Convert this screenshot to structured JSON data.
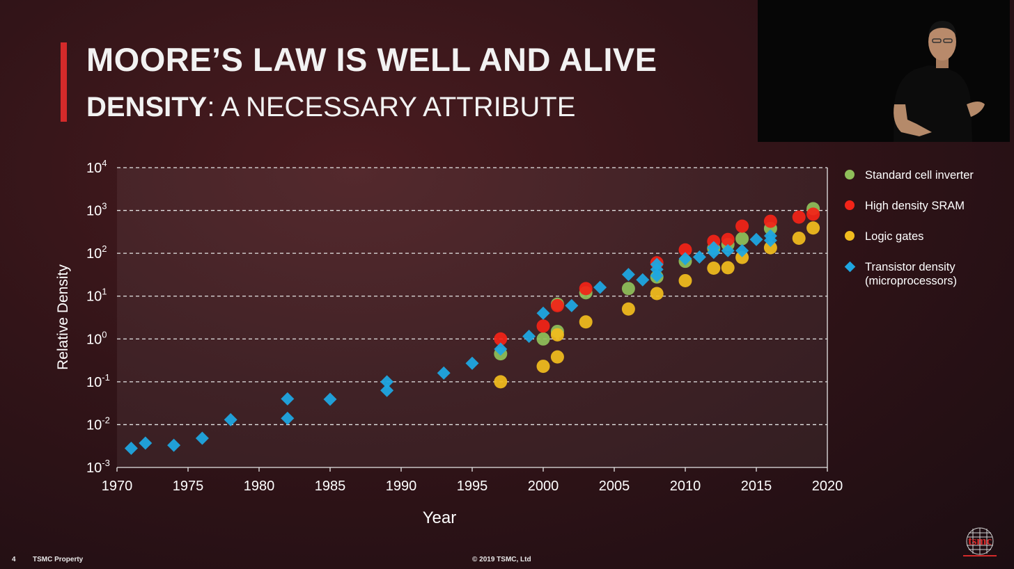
{
  "slide": {
    "title": "MOORE’S LAW IS WELL AND ALIVE",
    "subtitle_bold": "DENSITY",
    "subtitle_rest": ": A NECESSARY ATTRIBUTE",
    "page_number": "4",
    "property": "TSMC Property",
    "copyright": "© 2019 TSMC, Ltd",
    "logo_text": "tsmc"
  },
  "colors": {
    "accent": "#d42a2a",
    "standard_cell": "#8fbf5a",
    "sram": "#f22418",
    "logic": "#f1bc1e",
    "transistor": "#1fa6e0"
  },
  "chart_data": {
    "type": "scatter",
    "xlabel": "Year",
    "ylabel": "Relative Density",
    "xlim": [
      1970,
      2020
    ],
    "ylim_log10": [
      -3,
      4
    ],
    "y_scale": "log",
    "x_ticks": [
      1970,
      1975,
      1980,
      1985,
      1990,
      1995,
      2000,
      2005,
      2010,
      2015,
      2020
    ],
    "y_tick_labels": [
      {
        "exp": 4,
        "base": "10",
        "sup": "4"
      },
      {
        "exp": 3,
        "base": "10",
        "sup": "3"
      },
      {
        "exp": 2,
        "base": "10",
        "sup": "2"
      },
      {
        "exp": 1,
        "base": "10",
        "sup": "1"
      },
      {
        "exp": 0,
        "base": "10",
        "sup": "0"
      },
      {
        "exp": -1,
        "base": "10",
        "sup": "-1"
      },
      {
        "exp": -2,
        "base": "10",
        "sup": "-2"
      },
      {
        "exp": -3,
        "base": "10",
        "sup": "-3"
      }
    ],
    "grid": "horizontal dashed",
    "legend_position": "right",
    "series": [
      {
        "name": "Standard cell inverter",
        "marker": "circle",
        "color": "#8fbf5a",
        "points": [
          [
            1997,
            0.45
          ],
          [
            2000,
            1.0
          ],
          [
            2001,
            1.5
          ],
          [
            2001,
            6.5
          ],
          [
            2003,
            12
          ],
          [
            2006,
            15
          ],
          [
            2008,
            28
          ],
          [
            2010,
            65
          ],
          [
            2012,
            130
          ],
          [
            2013,
            160
          ],
          [
            2014,
            220
          ],
          [
            2016,
            380
          ],
          [
            2019,
            1100
          ]
        ]
      },
      {
        "name": "High density SRAM",
        "marker": "circle",
        "color": "#f22418",
        "points": [
          [
            1997,
            1.0
          ],
          [
            2000,
            2.0
          ],
          [
            2001,
            6.0
          ],
          [
            2003,
            15
          ],
          [
            2008,
            60
          ],
          [
            2010,
            120
          ],
          [
            2012,
            190
          ],
          [
            2013,
            210
          ],
          [
            2014,
            430
          ],
          [
            2016,
            560
          ],
          [
            2018,
            700
          ],
          [
            2019,
            820
          ]
        ]
      },
      {
        "name": "Logic gates",
        "marker": "circle",
        "color": "#f1bc1e",
        "points": [
          [
            1997,
            0.1
          ],
          [
            2000,
            0.23
          ],
          [
            2001,
            0.38
          ],
          [
            2001,
            1.25
          ],
          [
            2003,
            2.5
          ],
          [
            2006,
            5.0
          ],
          [
            2008,
            11.5
          ],
          [
            2010,
            23
          ],
          [
            2012,
            45
          ],
          [
            2013,
            46
          ],
          [
            2014,
            80
          ],
          [
            2016,
            135
          ],
          [
            2018,
            225
          ],
          [
            2019,
            390
          ]
        ]
      },
      {
        "name": "Transistor density\n(microprocessors)",
        "marker": "diamond",
        "color": "#1fa6e0",
        "points": [
          [
            1971,
            0.0028
          ],
          [
            1972,
            0.0037
          ],
          [
            1974,
            0.0033
          ],
          [
            1976,
            0.0048
          ],
          [
            1978,
            0.013
          ],
          [
            1982,
            0.014
          ],
          [
            1982,
            0.04
          ],
          [
            1985,
            0.039
          ],
          [
            1989,
            0.063
          ],
          [
            1989,
            0.1
          ],
          [
            1993,
            0.16
          ],
          [
            1995,
            0.27
          ],
          [
            1997,
            0.58
          ],
          [
            1999,
            1.15
          ],
          [
            2000,
            4.0
          ],
          [
            2002,
            6.0
          ],
          [
            2004,
            16
          ],
          [
            2006,
            32
          ],
          [
            2007,
            24
          ],
          [
            2008,
            30
          ],
          [
            2008,
            42
          ],
          [
            2008,
            55
          ],
          [
            2010,
            75
          ],
          [
            2011,
            82
          ],
          [
            2012,
            105
          ],
          [
            2012,
            135
          ],
          [
            2013,
            115
          ],
          [
            2014,
            115
          ],
          [
            2015,
            210
          ],
          [
            2016,
            200
          ],
          [
            2016,
            255
          ]
        ]
      }
    ]
  }
}
